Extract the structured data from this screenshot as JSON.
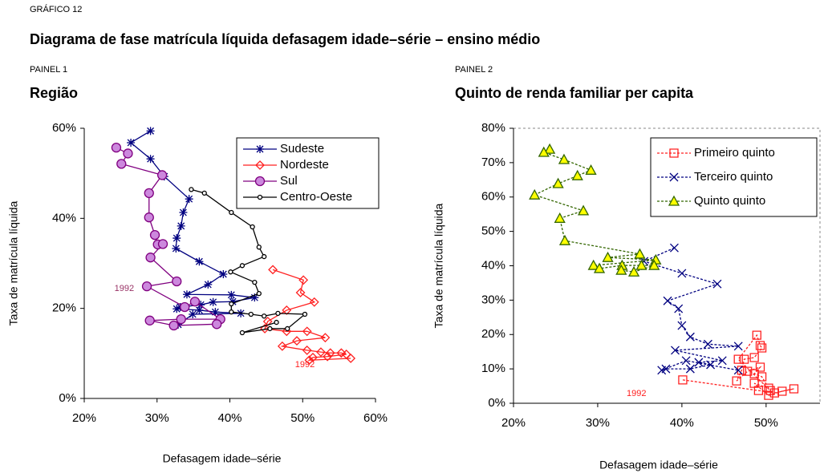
{
  "header": {
    "label": "GRÁFICO 12",
    "title": "Diagrama de fase matrícula líquida defasagem idade–série – ensino médio"
  },
  "chart_data": [
    {
      "type": "line",
      "panel": "PAINEL 1",
      "title": "Região",
      "xlabel": "Defasagem idade–série",
      "ylabel": "Taxa de matrícula líquida",
      "xlim": [
        20,
        60
      ],
      "xticks": [
        {
          "value": 20,
          "label": "20%"
        },
        {
          "value": 30,
          "label": "30%"
        },
        {
          "value": 40,
          "label": "40%"
        },
        {
          "value": 50,
          "label": "50%"
        },
        {
          "value": 60,
          "label": "60%"
        }
      ],
      "ylim": [
        0,
        60
      ],
      "yticks": [
        {
          "value": 0,
          "label": "0%"
        },
        {
          "value": 20,
          "label": "20%"
        },
        {
          "value": 40,
          "label": "40%"
        },
        {
          "value": 60,
          "label": "60%"
        }
      ],
      "grid": false,
      "legend": "upper right",
      "series": [
        {
          "name": "Sudeste",
          "color": "#000080",
          "marker": "star",
          "marker_fill": "none",
          "x": [
            29.1,
            26.4,
            29.1,
            31.0,
            34.4,
            33.6,
            33.3,
            32.7,
            32.6,
            35.8,
            39.1,
            37.0,
            34.1,
            40.2,
            43.4,
            40.4,
            37.7,
            36.0,
            33.2,
            32.7,
            35.8,
            38.0,
            41.5,
            34.9,
            32.9
          ],
          "values": [
            59.4,
            56.8,
            53.2,
            49.3,
            44.3,
            41.3,
            38.3,
            35.6,
            33.3,
            30.4,
            27.6,
            25.3,
            23.1,
            23.0,
            22.4,
            21.5,
            21.4,
            20.8,
            20.3,
            19.9,
            19.6,
            19.2,
            18.9,
            18.7,
            16.4
          ]
        },
        {
          "name": "Nordeste",
          "color": "#ff2020",
          "marker": "diamond",
          "marker_fill": "none",
          "x": [
            45.9,
            50.1,
            49.7,
            51.6,
            47.8,
            45.2,
            44.8,
            47.8,
            50.6,
            53.1,
            49.2,
            47.2,
            50.6,
            52.5,
            53.8,
            55.3,
            56.0,
            53.4,
            51.4,
            50.9,
            56.6
          ],
          "values": [
            28.6,
            26.3,
            23.5,
            21.4,
            19.6,
            17.1,
            15.5,
            14.9,
            14.9,
            13.5,
            12.8,
            11.6,
            10.7,
            10.3,
            10.1,
            10.1,
            9.8,
            9.3,
            9.1,
            8.5,
            8.9
          ]
        },
        {
          "name": "Sul",
          "color": "#800080",
          "marker": "circle",
          "marker_fill": "#cc88dd",
          "x": [
            24.4,
            26.0,
            25.1,
            30.7,
            28.9,
            28.9,
            29.7,
            30.1,
            30.8,
            29.1,
            32.7,
            28.6,
            33.8,
            35.2,
            38.7,
            33.3,
            29.0,
            32.3,
            38.2
          ],
          "values": [
            55.7,
            54.4,
            52.1,
            49.6,
            45.6,
            40.2,
            36.3,
            34.2,
            34.3,
            31.3,
            26.0,
            24.9,
            20.3,
            21.5,
            17.6,
            17.6,
            17.3,
            16.2,
            16.5
          ]
        },
        {
          "name": "Centro-Oeste",
          "color": "#000000",
          "marker": "dot",
          "marker_fill": "#ffffff",
          "x": [
            34.7,
            36.5,
            40.2,
            43.1,
            44.0,
            44.7,
            41.7,
            40.1,
            43.4,
            44.0,
            40.2,
            40.2,
            42.9,
            44.7,
            46.6,
            50.3,
            47.9,
            45.5,
            41.7,
            46.4
          ],
          "values": [
            46.4,
            45.6,
            41.3,
            38.1,
            33.6,
            31.5,
            29.5,
            28.1,
            25.8,
            23.3,
            21.0,
            19.2,
            18.7,
            18.3,
            18.9,
            18.7,
            15.5,
            15.5,
            14.6,
            16.9
          ]
        }
      ],
      "annotations": [
        {
          "text": "1992",
          "x": 25.5,
          "y": 24.4,
          "color": "#993366"
        },
        {
          "text": "1992",
          "x": 50.3,
          "y": 7.5,
          "color": "#ff2020"
        }
      ]
    },
    {
      "type": "line",
      "panel": "PAINEL 2",
      "title": "Quinto de renda familiar per capita",
      "xlabel": "Defasagem idade–série",
      "ylabel": "Taxa de matrícula líquida",
      "xlim": [
        20,
        56.4
      ],
      "xticks": [
        {
          "value": 20,
          "label": "20%"
        },
        {
          "value": 30,
          "label": "30%"
        },
        {
          "value": 40,
          "label": "40%"
        },
        {
          "value": 50,
          "label": "50%"
        }
      ],
      "ylim": [
        0,
        80
      ],
      "yticks": [
        {
          "value": 0,
          "label": "0%"
        },
        {
          "value": 10,
          "label": "10%"
        },
        {
          "value": 20,
          "label": "20%"
        },
        {
          "value": 30,
          "label": "30%"
        },
        {
          "value": 40,
          "label": "40%"
        },
        {
          "value": 50,
          "label": "50%"
        },
        {
          "value": 60,
          "label": "60%"
        },
        {
          "value": 70,
          "label": "70%"
        },
        {
          "value": 80,
          "label": "80%"
        }
      ],
      "grid": false,
      "legend": "upper right",
      "series": [
        {
          "name": "Primeiro quinto",
          "color": "#ff2020",
          "marker": "square",
          "marker_fill": "none",
          "x": [
            40.1,
            49.1,
            51.0,
            53.3,
            51.9,
            50.3,
            48.6,
            50.3,
            49.5,
            48.6,
            49.3,
            47.8,
            46.5,
            47.1,
            47.4,
            48.6,
            49.5,
            49.3,
            48.9,
            46.7,
            50.5
          ],
          "values": [
            6.8,
            3.7,
            3.0,
            4.2,
            3.5,
            2.3,
            5.8,
            4.4,
            7.7,
            8.6,
            10.5,
            9.3,
            6.5,
            9.6,
            12.8,
            13.3,
            16.1,
            16.8,
            19.8,
            12.8,
            3.7
          ]
        },
        {
          "name": "Terceiro quinto",
          "color": "#000080",
          "marker": "x",
          "marker_fill": "none",
          "x": [
            39.1,
            35.5,
            40.0,
            44.2,
            38.3,
            39.6,
            40.0,
            41.0,
            43.1,
            46.7,
            39.2,
            44.8,
            42.0,
            43.4,
            41.0,
            38.1,
            37.6,
            40.5,
            46.7
          ],
          "values": [
            45.2,
            41.3,
            37.8,
            34.7,
            29.8,
            27.5,
            22.6,
            19.3,
            17.2,
            16.6,
            15.4,
            12.4,
            11.9,
            11.2,
            10.0,
            10.0,
            9.6,
            12.4,
            9.6
          ]
        },
        {
          "name": "Quinto quinto",
          "color": "#336600",
          "marker": "triangle",
          "marker_fill": "#ffff00",
          "x": [
            24.3,
            23.6,
            26.0,
            29.2,
            27.6,
            25.3,
            22.5,
            28.3,
            25.5,
            26.1,
            35.0,
            31.2,
            36.9,
            29.5,
            30.2,
            32.9,
            35.2,
            36.7,
            34.3,
            32.8
          ],
          "values": [
            73.9,
            73.0,
            70.9,
            67.8,
            66.2,
            63.9,
            60.6,
            56.0,
            53.8,
            47.3,
            43.4,
            42.4,
            41.7,
            40.1,
            39.2,
            40.1,
            40.1,
            40.1,
            38.2,
            38.7
          ]
        }
      ],
      "annotations": [
        {
          "text": "1992",
          "x": 34.6,
          "y": 2.8,
          "color": "#ff2020"
        }
      ]
    }
  ]
}
